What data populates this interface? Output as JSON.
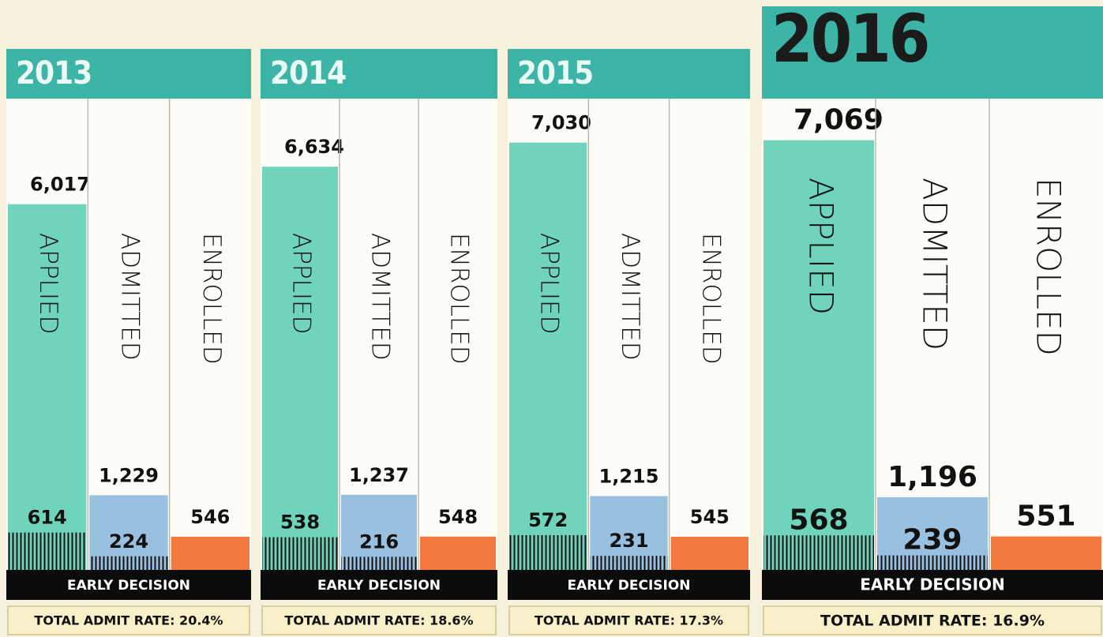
{
  "chart_data": [
    {
      "type": "bar",
      "title": "2013",
      "categories": [
        "APPLIED",
        "ADMITTED",
        "ENROLLED"
      ],
      "values": [
        6017,
        1229,
        546
      ],
      "value_labels": [
        "6,017",
        "1,229",
        "546"
      ],
      "colors": [
        "#5fcfb5",
        "#8fb9de",
        "#f26a2a"
      ],
      "early_decision": {
        "name": "EARLY DECISION",
        "values": [
          614,
          224,
          null
        ]
      },
      "annotation": "TOTAL ADMIT RATE: 20.4%"
    },
    {
      "type": "bar",
      "title": "2014",
      "categories": [
        "APPLIED",
        "ADMITTED",
        "ENROLLED"
      ],
      "values": [
        6634,
        1237,
        548
      ],
      "value_labels": [
        "6,634",
        "1,237",
        "548"
      ],
      "colors": [
        "#5fcfb5",
        "#8fb9de",
        "#f26a2a"
      ],
      "early_decision": {
        "name": "EARLY DECISION",
        "values": [
          538,
          216,
          null
        ]
      },
      "annotation": "TOTAL ADMIT RATE: 18.6%"
    },
    {
      "type": "bar",
      "title": "2015",
      "categories": [
        "APPLIED",
        "ADMITTED",
        "ENROLLED"
      ],
      "values": [
        7030,
        1215,
        545
      ],
      "value_labels": [
        "7,030",
        "1,215",
        "545"
      ],
      "colors": [
        "#5fcfb5",
        "#8fb9de",
        "#f26a2a"
      ],
      "early_decision": {
        "name": "EARLY DECISION",
        "values": [
          572,
          231,
          null
        ]
      },
      "annotation": "TOTAL ADMIT RATE: 17.3%"
    },
    {
      "type": "bar",
      "title": "2016",
      "categories": [
        "APPLIED",
        "ADMITTED",
        "ENROLLED"
      ],
      "values": [
        7069,
        1196,
        551
      ],
      "value_labels": [
        "7,069",
        "1,196",
        "551"
      ],
      "colors": [
        "#5fcfb5",
        "#8fb9de",
        "#f26a2a"
      ],
      "early_decision": {
        "name": "EARLY DECISION",
        "values": [
          568,
          239,
          null
        ]
      },
      "annotation": "TOTAL ADMIT RATE: 16.9%"
    }
  ]
}
